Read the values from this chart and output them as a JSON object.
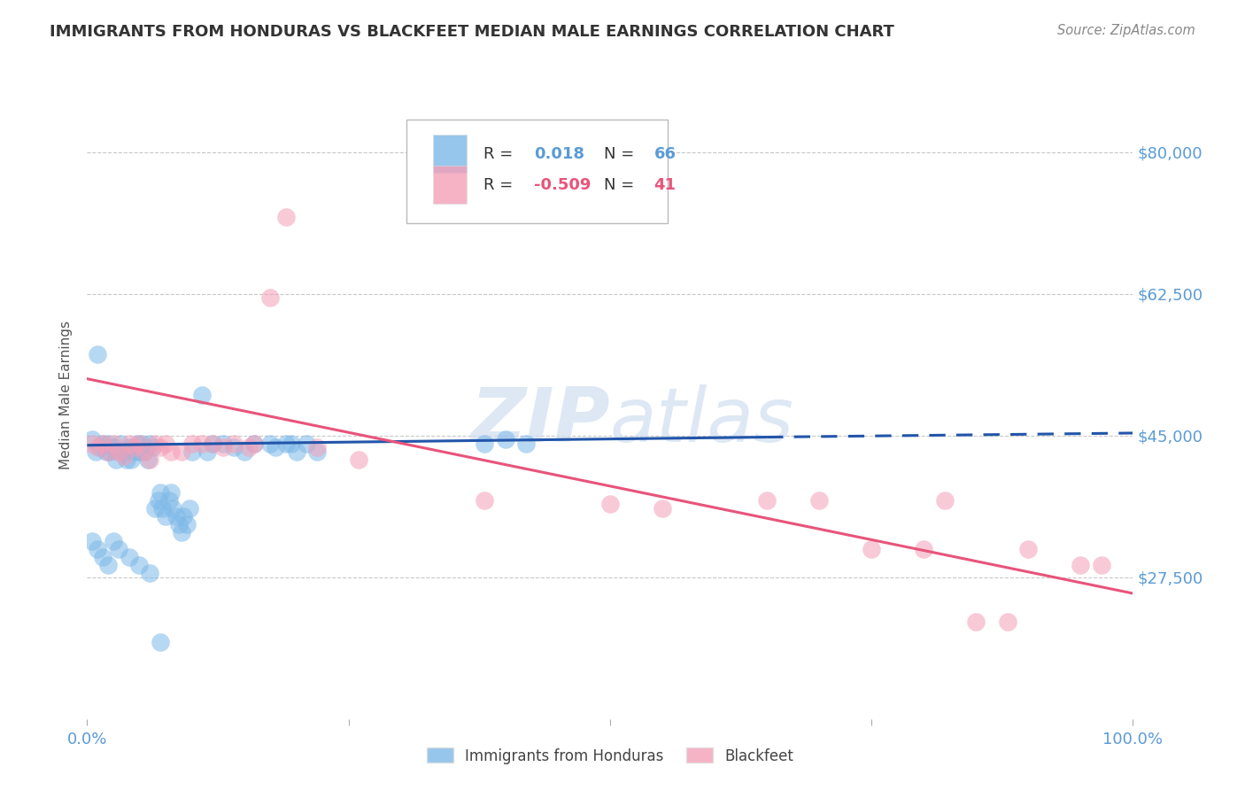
{
  "title": "IMMIGRANTS FROM HONDURAS VS BLACKFEET MEDIAN MALE EARNINGS CORRELATION CHART",
  "source": "Source: ZipAtlas.com",
  "ylabel": "Median Male Earnings",
  "xlim": [
    0.0,
    1.0
  ],
  "ylim": [
    10000,
    90000
  ],
  "yticks": [
    27500,
    45000,
    62500,
    80000
  ],
  "ytick_labels": [
    "$27,500",
    "$45,000",
    "$62,500",
    "$80,000"
  ],
  "xticks": [
    0.0,
    0.25,
    0.5,
    0.75,
    1.0
  ],
  "xtick_labels": [
    "0.0%",
    "",
    "",
    "",
    "100.0%"
  ],
  "blue_color": "#7db8e8",
  "pink_color": "#f4a0b8",
  "trend_blue_color": "#2255aa",
  "trend_pink_color": "#e8547a",
  "watermark": "ZIPatlas",
  "background_color": "#ffffff",
  "title_color": "#333333",
  "tick_label_color": "#5b9bd5",
  "grid_color": "#c8c8c8",
  "legend_r1_color": "#5b9bd5",
  "legend_r2_color": "#e8547a",
  "blue_points_x": [
    0.005,
    0.008,
    0.01,
    0.012,
    0.015,
    0.018,
    0.02,
    0.022,
    0.025,
    0.028,
    0.03,
    0.032,
    0.035,
    0.038,
    0.04,
    0.042,
    0.045,
    0.048,
    0.05,
    0.052,
    0.055,
    0.058,
    0.06,
    0.062,
    0.065,
    0.068,
    0.07,
    0.072,
    0.075,
    0.078,
    0.08,
    0.082,
    0.085,
    0.088,
    0.09,
    0.092,
    0.095,
    0.098,
    0.1,
    0.11,
    0.115,
    0.12,
    0.13,
    0.14,
    0.15,
    0.16,
    0.175,
    0.18,
    0.19,
    0.195,
    0.2,
    0.21,
    0.22,
    0.38,
    0.4,
    0.42,
    0.005,
    0.01,
    0.015,
    0.02,
    0.025,
    0.03,
    0.04,
    0.05,
    0.06,
    0.07
  ],
  "blue_points_y": [
    44500,
    43000,
    55000,
    43500,
    44000,
    43000,
    44000,
    43000,
    43500,
    42000,
    43000,
    44000,
    43000,
    42000,
    43500,
    42000,
    43000,
    44000,
    43000,
    44000,
    43000,
    42000,
    44000,
    43500,
    36000,
    37000,
    38000,
    36000,
    35000,
    37000,
    38000,
    36000,
    35000,
    34000,
    33000,
    35000,
    34000,
    36000,
    43000,
    50000,
    43000,
    44000,
    44000,
    43500,
    43000,
    44000,
    44000,
    43500,
    44000,
    44000,
    43000,
    44000,
    43000,
    44000,
    44500,
    44000,
    32000,
    31000,
    30000,
    29000,
    32000,
    31000,
    30000,
    29000,
    28000,
    19500
  ],
  "pink_points_x": [
    0.005,
    0.01,
    0.015,
    0.02,
    0.025,
    0.03,
    0.035,
    0.04,
    0.045,
    0.05,
    0.055,
    0.06,
    0.065,
    0.07,
    0.075,
    0.08,
    0.09,
    0.1,
    0.11,
    0.12,
    0.13,
    0.14,
    0.155,
    0.16,
    0.175,
    0.19,
    0.22,
    0.26,
    0.38,
    0.5,
    0.55,
    0.65,
    0.7,
    0.75,
    0.8,
    0.82,
    0.85,
    0.88,
    0.9,
    0.95,
    0.97
  ],
  "pink_points_y": [
    44000,
    43500,
    44000,
    43000,
    44000,
    43000,
    42500,
    44000,
    43500,
    44000,
    43000,
    42000,
    44000,
    43500,
    44000,
    43000,
    43000,
    44000,
    44000,
    44000,
    43500,
    44000,
    43500,
    44000,
    62000,
    72000,
    43500,
    42000,
    37000,
    36500,
    36000,
    37000,
    37000,
    31000,
    31000,
    37000,
    22000,
    22000,
    31000,
    29000,
    29000
  ],
  "blue_trend_x": [
    0.0,
    0.65
  ],
  "blue_trend_y": [
    43800,
    44800
  ],
  "pink_trend_x": [
    0.0,
    1.0
  ],
  "pink_trend_y": [
    52000,
    25500
  ]
}
